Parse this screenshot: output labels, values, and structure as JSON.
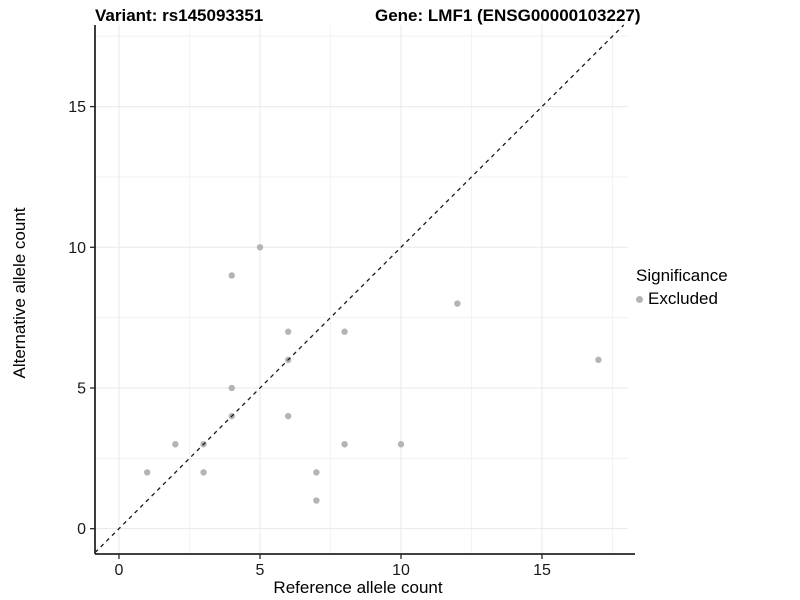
{
  "header": {
    "variant_title": "Variant: rs145093351",
    "gene_title": "Gene: LMF1 (ENSG00000103227)"
  },
  "legend": {
    "title": "Significance",
    "items": [
      {
        "label": "Excluded",
        "color": "#b4b4b4"
      }
    ]
  },
  "colors": {
    "point": "#b4b4b4",
    "identity_line": "#1a1a1a",
    "grid_major": "#e9e9e9",
    "grid_minor": "#f3f3f3",
    "axis_line": "#262626",
    "tick_label": "#1a1a1a"
  },
  "chart_data": {
    "type": "scatter",
    "title": "Variant: rs145093351 | Gene: LMF1 (ENSG00000103227)",
    "xlabel": "Reference allele count",
    "ylabel": "Alternative allele count",
    "xlim": [
      -0.85,
      18.05
    ],
    "ylim": [
      -0.9,
      17.9
    ],
    "xticks": [
      0,
      5,
      10,
      15
    ],
    "yticks": [
      0,
      5,
      10,
      15
    ],
    "minor_gridlines": [
      2.5,
      7.5,
      12.5,
      17.5
    ],
    "grid": true,
    "legend_position": "right",
    "series": [
      {
        "name": "Excluded",
        "color": "#b4b4b4",
        "points": [
          [
            1,
            2
          ],
          [
            2,
            3
          ],
          [
            3,
            2
          ],
          [
            3,
            3
          ],
          [
            4,
            4
          ],
          [
            4,
            5
          ],
          [
            4,
            9
          ],
          [
            5,
            10
          ],
          [
            6,
            4
          ],
          [
            6,
            6
          ],
          [
            6,
            7
          ],
          [
            7,
            1
          ],
          [
            7,
            2
          ],
          [
            8,
            3
          ],
          [
            8,
            7
          ],
          [
            10,
            3
          ],
          [
            12,
            8
          ],
          [
            17,
            6
          ]
        ]
      }
    ],
    "identity_line": {
      "style": "dashed",
      "x1": -0.85,
      "y1": -0.85,
      "x2": 17.9,
      "y2": 17.9
    }
  }
}
